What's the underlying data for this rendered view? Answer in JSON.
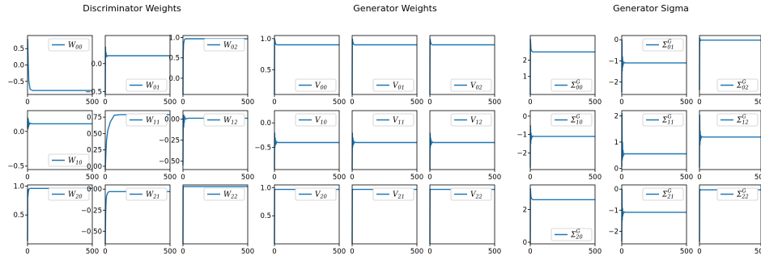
{
  "titles": [
    "Discriminator Weights",
    "Generator Weights",
    "Generator Sigma"
  ],
  "chart_data": [
    {
      "type": "line",
      "panel": 0,
      "label": "W00",
      "series": [
        {
          "name": "W00",
          "x": [
            0,
            2,
            5,
            10,
            20,
            40,
            100,
            500
          ],
          "values": [
            0.8,
            0.7,
            0.1,
            -0.5,
            -0.74,
            -0.78,
            -0.78,
            -0.78
          ]
        }
      ],
      "xlim": [
        0,
        500
      ],
      "ylim": [
        -0.9,
        0.9
      ],
      "yticks": [
        0.5,
        0.0,
        -0.5
      ],
      "ytick_labels": [
        "0.5",
        "0.0",
        "−0.5"
      ],
      "legend": "top-right"
    },
    {
      "type": "line",
      "panel": 0,
      "label": "W01",
      "series": [
        {
          "name": "W01",
          "x": [
            0,
            2,
            4,
            6,
            8,
            10,
            15,
            20,
            40,
            500
          ],
          "values": [
            -0.55,
            0.3,
            0.1,
            0.2,
            0.12,
            0.15,
            0.13,
            0.14,
            0.14,
            0.14
          ]
        }
      ],
      "xlim": [
        0,
        500
      ],
      "ylim": [
        -0.55,
        0.5
      ],
      "yticks": [
        0.0,
        -0.5
      ],
      "ytick_labels": [
        "0.0",
        "−0.5"
      ],
      "legend": "bottom-right"
    },
    {
      "type": "line",
      "panel": 0,
      "label": "W02",
      "series": [
        {
          "name": "W02",
          "x": [
            0,
            2,
            5,
            8,
            12,
            20,
            40,
            500
          ],
          "values": [
            -0.4,
            0.6,
            0.85,
            0.9,
            0.95,
            0.97,
            0.97,
            0.97
          ]
        }
      ],
      "xlim": [
        0,
        500
      ],
      "ylim": [
        -0.4,
        1.05
      ],
      "yticks": [
        1.0,
        0.5,
        0.0
      ],
      "ytick_labels": [
        "1.0",
        "0.5",
        "0.0"
      ],
      "legend": "top-right"
    },
    {
      "type": "line",
      "panel": 0,
      "label": "W10",
      "series": [
        {
          "name": "W10",
          "x": [
            0,
            2,
            4,
            6,
            8,
            10,
            14,
            20,
            30,
            500
          ],
          "values": [
            0.05,
            0.2,
            0.03,
            0.18,
            0.06,
            0.14,
            0.1,
            0.12,
            0.11,
            0.11
          ]
        }
      ],
      "xlim": [
        0,
        500
      ],
      "ylim": [
        -0.55,
        0.3
      ],
      "yticks": [
        0.0,
        -0.5
      ],
      "ytick_labels": [
        "0.0",
        "−0.5"
      ],
      "legend": "bottom-right"
    },
    {
      "type": "line",
      "panel": 0,
      "label": "W11",
      "series": [
        {
          "name": "W11",
          "x": [
            0,
            5,
            10,
            20,
            40,
            70,
            120,
            500
          ],
          "values": [
            -0.05,
            0.2,
            0.4,
            0.55,
            0.68,
            0.78,
            0.79,
            0.79
          ]
        }
      ],
      "xlim": [
        0,
        500
      ],
      "ylim": [
        -0.05,
        0.85
      ],
      "yticks": [
        0.75,
        0.5,
        0.25,
        0.0
      ],
      "ytick_labels": [
        "0.75",
        "0.50",
        "0.25",
        "0.00"
      ],
      "legend": "top-right"
    },
    {
      "type": "line",
      "panel": 0,
      "label": "W12",
      "series": [
        {
          "name": "W12",
          "x": [
            0,
            2,
            4,
            6,
            8,
            10,
            14,
            20,
            40,
            500
          ],
          "values": [
            -0.55,
            -0.1,
            0.05,
            -0.1,
            0.05,
            -0.05,
            0.03,
            0.0,
            0.01,
            0.01
          ]
        }
      ],
      "xlim": [
        0,
        500
      ],
      "ylim": [
        -0.6,
        0.1
      ],
      "yticks": [
        0.0,
        -0.25,
        -0.5
      ],
      "ytick_labels": [
        "0.00",
        "−0.25",
        "−0.50"
      ],
      "legend": "top-right"
    },
    {
      "type": "line",
      "panel": 0,
      "label": "W20",
      "series": [
        {
          "name": "W20",
          "x": [
            0,
            1,
            3,
            5,
            8,
            12,
            20,
            30,
            500
          ],
          "values": [
            0.05,
            0.95,
            0.82,
            0.88,
            0.92,
            0.95,
            0.96,
            0.96,
            0.96
          ]
        }
      ],
      "xlim": [
        0,
        500
      ],
      "ylim": [
        0.0,
        1.02
      ],
      "yticks": [
        1.0,
        0.5
      ],
      "ytick_labels": [
        "1.0",
        "0.5"
      ],
      "legend": "top-right"
    },
    {
      "type": "line",
      "panel": 0,
      "label": "W21",
      "series": [
        {
          "name": "W21",
          "x": [
            0,
            3,
            6,
            10,
            15,
            20,
            30,
            60,
            500
          ],
          "values": [
            -0.65,
            -0.3,
            -0.15,
            -0.08,
            -0.06,
            -0.04,
            -0.03,
            -0.03,
            -0.03
          ]
        }
      ],
      "xlim": [
        0,
        500
      ],
      "ylim": [
        -0.65,
        0.05
      ],
      "yticks": [
        0.0,
        -0.25,
        -0.5
      ],
      "ytick_labels": [
        "0.00",
        "−0.25",
        "−0.50"
      ],
      "legend": "top-right"
    },
    {
      "type": "line",
      "panel": 0,
      "label": "W22",
      "series": [
        {
          "name": "W22",
          "x": [
            0,
            1,
            3,
            5,
            10,
            20,
            500
          ],
          "values": [
            -0.4,
            0.9,
            0.97,
            0.98,
            0.98,
            0.98,
            0.98
          ]
        }
      ],
      "xlim": [
        0,
        500
      ],
      "ylim": [
        -0.4,
        1.02
      ],
      "yticks": [],
      "ytick_labels": [],
      "legend": "top-right"
    },
    {
      "type": "line",
      "panel": 1,
      "label": "V00",
      "series": [
        {
          "name": "V00",
          "x": [
            0,
            1,
            5,
            10,
            20,
            40,
            500
          ],
          "values": [
            0.1,
            1.0,
            0.95,
            0.91,
            0.9,
            0.9,
            0.9
          ]
        }
      ],
      "xlim": [
        0,
        500
      ],
      "ylim": [
        0.1,
        1.05
      ],
      "yticks": [
        1.0,
        0.5
      ],
      "ytick_labels": [
        "1.0",
        "0.5"
      ],
      "legend": "bottom-right"
    },
    {
      "type": "line",
      "panel": 1,
      "label": "V01",
      "series": [
        {
          "name": "V01",
          "x": [
            0,
            1,
            5,
            10,
            20,
            40,
            500
          ],
          "values": [
            0.1,
            1.0,
            0.95,
            0.91,
            0.9,
            0.9,
            0.9
          ]
        }
      ],
      "xlim": [
        0,
        500
      ],
      "ylim": [
        0.1,
        1.05
      ],
      "yticks": [],
      "ytick_labels": [],
      "legend": "bottom-right"
    },
    {
      "type": "line",
      "panel": 1,
      "label": "V02",
      "series": [
        {
          "name": "V02",
          "x": [
            0,
            1,
            5,
            10,
            20,
            40,
            500
          ],
          "values": [
            0.1,
            1.0,
            0.95,
            0.91,
            0.9,
            0.9,
            0.9
          ]
        }
      ],
      "xlim": [
        0,
        500
      ],
      "ylim": [
        0.1,
        1.05
      ],
      "yticks": [],
      "ytick_labels": [],
      "legend": "bottom-right"
    },
    {
      "type": "line",
      "panel": 1,
      "label": "V10",
      "series": [
        {
          "name": "V10",
          "x": [
            0,
            2,
            4,
            6,
            8,
            10,
            14,
            20,
            30,
            500
          ],
          "values": [
            -0.95,
            -0.2,
            -0.5,
            -0.3,
            -0.45,
            -0.35,
            -0.42,
            -0.39,
            -0.4,
            -0.4
          ]
        }
      ],
      "xlim": [
        0,
        500
      ],
      "ylim": [
        -0.95,
        0.25
      ],
      "yticks": [
        0.0,
        -0.5
      ],
      "ytick_labels": [
        "0.0",
        "−0.5"
      ],
      "legend": "top-right"
    },
    {
      "type": "line",
      "panel": 1,
      "label": "V11",
      "series": [
        {
          "name": "V11",
          "x": [
            0,
            2,
            4,
            6,
            8,
            10,
            14,
            20,
            30,
            500
          ],
          "values": [
            -0.95,
            -0.2,
            -0.5,
            -0.3,
            -0.45,
            -0.35,
            -0.42,
            -0.39,
            -0.4,
            -0.4
          ]
        }
      ],
      "xlim": [
        0,
        500
      ],
      "ylim": [
        -0.95,
        0.25
      ],
      "yticks": [],
      "ytick_labels": [],
      "legend": "top-right"
    },
    {
      "type": "line",
      "panel": 1,
      "label": "V12",
      "series": [
        {
          "name": "V12",
          "x": [
            0,
            2,
            4,
            6,
            8,
            10,
            14,
            20,
            30,
            500
          ],
          "values": [
            -0.95,
            -0.2,
            -0.5,
            -0.3,
            -0.45,
            -0.35,
            -0.42,
            -0.39,
            -0.4,
            -0.4
          ]
        }
      ],
      "xlim": [
        0,
        500
      ],
      "ylim": [
        -0.95,
        0.25
      ],
      "yticks": [],
      "ytick_labels": [],
      "legend": "top-right"
    },
    {
      "type": "line",
      "panel": 1,
      "label": "V20",
      "series": [
        {
          "name": "V20",
          "x": [
            0,
            1,
            3,
            5,
            10,
            20,
            500
          ],
          "values": [
            0.0,
            0.98,
            0.96,
            0.97,
            0.97,
            0.97,
            0.97
          ]
        }
      ],
      "xlim": [
        0,
        500
      ],
      "ylim": [
        0.0,
        1.05
      ],
      "yticks": [
        1.0,
        0.5
      ],
      "ytick_labels": [
        "1.0",
        "0.5"
      ],
      "legend": "top-right"
    },
    {
      "type": "line",
      "panel": 1,
      "label": "V21",
      "series": [
        {
          "name": "V21",
          "x": [
            0,
            1,
            3,
            5,
            10,
            20,
            500
          ],
          "values": [
            0.0,
            0.98,
            0.96,
            0.97,
            0.97,
            0.97,
            0.97
          ]
        }
      ],
      "xlim": [
        0,
        500
      ],
      "ylim": [
        0.0,
        1.05
      ],
      "yticks": [],
      "ytick_labels": [],
      "legend": "top-right"
    },
    {
      "type": "line",
      "panel": 1,
      "label": "V22",
      "series": [
        {
          "name": "V22",
          "x": [
            0,
            1,
            3,
            5,
            10,
            20,
            500
          ],
          "values": [
            0.0,
            0.98,
            0.96,
            0.97,
            0.97,
            0.97,
            0.97
          ]
        }
      ],
      "xlim": [
        0,
        500
      ],
      "ylim": [
        0.0,
        1.05
      ],
      "yticks": [],
      "ytick_labels": [],
      "legend": "top-right"
    },
    {
      "type": "line",
      "panel": 2,
      "label": "Σ00",
      "series": [
        {
          "name": "Σ00",
          "x": [
            0,
            1,
            3,
            5,
            8,
            12,
            20,
            40,
            500
          ],
          "values": [
            -0.1,
            3.3,
            3.0,
            2.7,
            2.6,
            2.55,
            2.5,
            2.5,
            2.5
          ]
        }
      ],
      "xlim": [
        0,
        500
      ],
      "ylim": [
        -0.1,
        3.5
      ],
      "yticks": [
        2,
        1
      ],
      "ytick_labels": [
        "2",
        "1"
      ],
      "legend": "bottom-right"
    },
    {
      "type": "line",
      "panel": 2,
      "label": "Σ01",
      "series": [
        {
          "name": "Σ01",
          "x": [
            0,
            2,
            4,
            6,
            8,
            10,
            14,
            20,
            30,
            500
          ],
          "values": [
            -2.5,
            0.0,
            -1.5,
            -0.8,
            -1.3,
            -1.0,
            -1.15,
            -1.08,
            -1.1,
            -1.1
          ]
        }
      ],
      "xlim": [
        0,
        500
      ],
      "ylim": [
        -2.6,
        0.2
      ],
      "yticks": [
        0,
        -1,
        -2
      ],
      "ytick_labels": [
        "0",
        "−1",
        "−2"
      ],
      "legend": "top-right"
    },
    {
      "type": "line",
      "panel": 2,
      "label": "Σ02",
      "series": [
        {
          "name": "Σ02",
          "x": [
            0,
            2,
            4,
            6,
            8,
            12,
            20,
            40,
            500
          ],
          "values": [
            -1.8,
            0.6,
            0.45,
            0.52,
            0.47,
            0.5,
            0.49,
            0.49,
            0.49
          ]
        }
      ],
      "xlim": [
        0,
        500
      ],
      "ylim": [
        -2.0,
        0.7
      ],
      "yticks": [],
      "ytick_labels": [],
      "legend": "bottom-right"
    },
    {
      "type": "line",
      "panel": 2,
      "label": "Σ10",
      "series": [
        {
          "name": "Σ10",
          "x": [
            0,
            2,
            4,
            6,
            8,
            10,
            14,
            20,
            30,
            500
          ],
          "values": [
            -2.8,
            -0.5,
            -1.5,
            -0.9,
            -1.3,
            -1.05,
            -1.15,
            -1.08,
            -1.1,
            -1.1
          ]
        }
      ],
      "xlim": [
        0,
        500
      ],
      "ylim": [
        -2.9,
        0.3
      ],
      "yticks": [
        0,
        -1,
        -2
      ],
      "ytick_labels": [
        "0",
        "−1",
        "−2"
      ],
      "legend": "top-right"
    },
    {
      "type": "line",
      "panel": 2,
      "label": "Σ11",
      "series": [
        {
          "name": "Σ11",
          "x": [
            0,
            2,
            4,
            6,
            8,
            10,
            14,
            20,
            30,
            500
          ],
          "values": [
            0.05,
            2.1,
            0.3,
            1.0,
            0.4,
            0.7,
            0.5,
            0.55,
            0.55,
            0.55
          ]
        }
      ],
      "xlim": [
        0,
        500
      ],
      "ylim": [
        -0.05,
        2.2
      ],
      "yticks": [
        2,
        1,
        0
      ],
      "ytick_labels": [
        "2",
        "1",
        "0"
      ],
      "legend": "top-right"
    },
    {
      "type": "line",
      "panel": 2,
      "label": "Σ12",
      "series": [
        {
          "name": "Σ12",
          "x": [
            0,
            2,
            4,
            6,
            8,
            10,
            14,
            20,
            30,
            500
          ],
          "values": [
            -2.6,
            0.0,
            -1.5,
            -0.8,
            -1.3,
            -1.0,
            -1.15,
            -1.08,
            -1.1,
            -1.1
          ]
        }
      ],
      "xlim": [
        0,
        500
      ],
      "ylim": [
        -2.7,
        0.2
      ],
      "yticks": [],
      "ytick_labels": [],
      "legend": "top-right"
    },
    {
      "type": "line",
      "panel": 2,
      "label": "Σ20",
      "series": [
        {
          "name": "Σ20",
          "x": [
            0,
            1,
            3,
            5,
            8,
            12,
            20,
            40,
            500
          ],
          "values": [
            -0.1,
            3.3,
            3.0,
            2.8,
            2.7,
            2.65,
            2.6,
            2.6,
            2.6
          ]
        }
      ],
      "xlim": [
        0,
        500
      ],
      "ylim": [
        -0.1,
        3.5
      ],
      "yticks": [
        2,
        0
      ],
      "ytick_labels": [
        "2",
        "0"
      ],
      "legend": "bottom-right"
    },
    {
      "type": "line",
      "panel": 2,
      "label": "Σ21",
      "series": [
        {
          "name": "Σ21",
          "x": [
            0,
            2,
            4,
            6,
            8,
            10,
            14,
            20,
            30,
            500
          ],
          "values": [
            -2.5,
            0.0,
            -1.5,
            -0.9,
            -1.3,
            -1.05,
            -1.15,
            -1.08,
            -1.1,
            -1.1
          ]
        }
      ],
      "xlim": [
        0,
        500
      ],
      "ylim": [
        -2.6,
        0.2
      ],
      "yticks": [
        0,
        -1,
        -2
      ],
      "ytick_labels": [
        "0",
        "−1",
        "−2"
      ],
      "legend": "top-right"
    },
    {
      "type": "line",
      "panel": 2,
      "label": "Σ22",
      "series": [
        {
          "name": "Σ22",
          "x": [
            0,
            1,
            3,
            5,
            10,
            20,
            500
          ],
          "values": [
            -0.1,
            2.6,
            2.5,
            2.55,
            2.55,
            2.55,
            2.55
          ]
        }
      ],
      "xlim": [
        0,
        500
      ],
      "ylim": [
        -0.2,
        2.8
      ],
      "yticks": [],
      "ytick_labels": [],
      "legend": "top-right"
    }
  ],
  "xtick_labels": [
    "0",
    "500"
  ],
  "line_color": "#1f77b4"
}
